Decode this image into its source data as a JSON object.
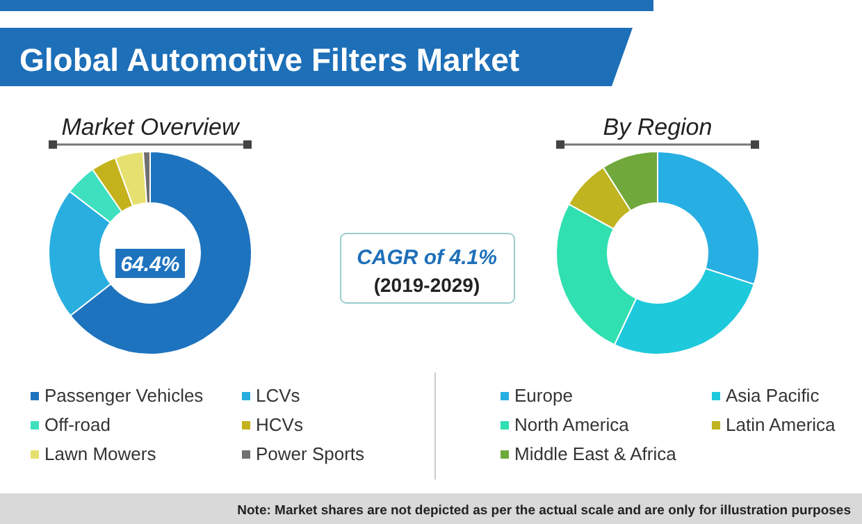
{
  "chart_data": [
    {
      "type": "other",
      "title": "Global Automotive Filters Market",
      "annotations": [
        "CAGR of 4.1%",
        "(2019-2029)",
        "Note: Market shares are not depicted as per the actual scale and are only for illustration purposes"
      ]
    },
    {
      "type": "donut",
      "title": "Market Overview",
      "categories": [
        "Passenger Vehicles",
        "LCVs",
        "Off-road",
        "HCVs",
        "Lawn Mowers",
        "Power Sports"
      ],
      "values": [
        64.4,
        21,
        5,
        4,
        4.5,
        1.1
      ],
      "colors": [
        "#1e73be",
        "#29aee0",
        "#3ee0c0",
        "#c4b21c",
        "#e6e070",
        "#707070"
      ],
      "value_labels": [
        "64.4%",
        null,
        null,
        null,
        null,
        null
      ],
      "legend": "bottom"
    },
    {
      "type": "donut",
      "title": "By Region",
      "categories": [
        "Europe",
        "Asia Pacific",
        "North America",
        "Latin America",
        "Middle East & Africa"
      ],
      "values": [
        30,
        27,
        26,
        8,
        9
      ],
      "colors": [
        "#27aee2",
        "#1ec9dc",
        "#30e0b0",
        "#c0b420",
        "#70a83c"
      ],
      "legend": "bottom"
    }
  ]
}
